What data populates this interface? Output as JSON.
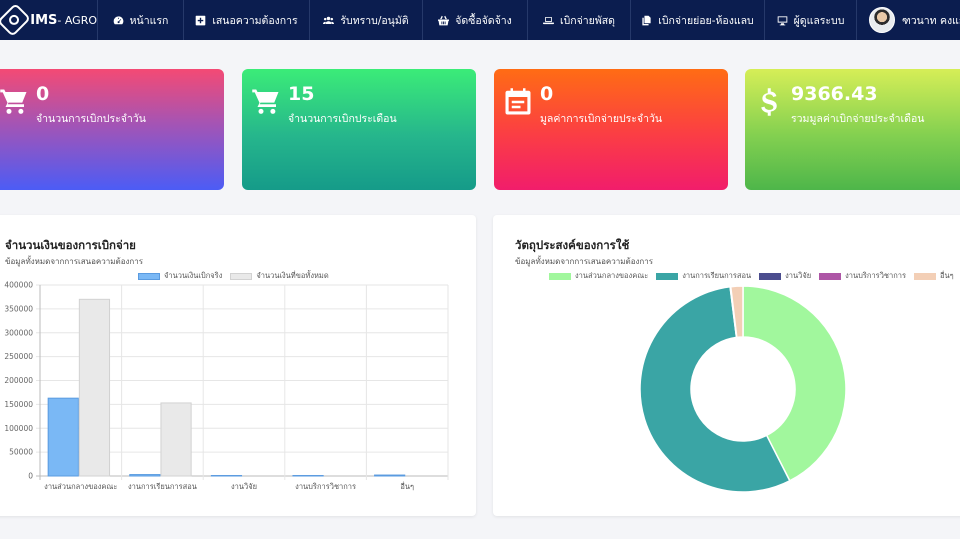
{
  "brand": {
    "name": "IMS",
    "sub": "- AGRO"
  },
  "nav": [
    {
      "key": "home",
      "label": "หน้าแรก",
      "icon": "dashboard-icon"
    },
    {
      "key": "request",
      "label": "เสนอความต้องการ",
      "icon": "plus-square-icon"
    },
    {
      "key": "approve",
      "label": "รับทราบ/อนุมัติ",
      "icon": "users-icon"
    },
    {
      "key": "procure",
      "label": "จัดซื้อจัดจ้าง",
      "icon": "basket-icon"
    },
    {
      "key": "supplies",
      "label": "เบิกจ่ายพัสดุ",
      "icon": "laptop-icon"
    },
    {
      "key": "disburse",
      "label": "เบิกจ่ายย่อย-ห้องแลบ",
      "icon": "copy-icon"
    },
    {
      "key": "users",
      "label": "ผู้ดูแลระบบ",
      "icon": "desktop-icon"
    }
  ],
  "user": {
    "name": "ฑวนาท คงแก้ว"
  },
  "stats": [
    {
      "value": "0",
      "label": "จำนวนการเบิกประจำวัน",
      "icon": "cart-icon"
    },
    {
      "value": "15",
      "label": "จำนวนการเบิกประเดือน",
      "icon": "cart-icon"
    },
    {
      "value": "0",
      "label": "มูลค่าการเบิกจ่ายประจำวัน",
      "icon": "calendar-icon"
    },
    {
      "value": "9366.43",
      "label": "รวมมูลค่าเบิกจ่ายประจำเดือน",
      "icon": "dollar-icon"
    }
  ],
  "bar_panel": {
    "title": "จำนวนเงินของการเบิกจ่าย",
    "subtitle": "ข้อมูลทั้งหมดจากการเสนอความต้องการ"
  },
  "pie_panel": {
    "title": "วัตถุประสงค์ของการใช้",
    "subtitle": "ข้อมูลทั้งหมดจากการเสนอความต้องการ"
  },
  "chart_data": [
    {
      "type": "bar",
      "categories": [
        "งานส่วนกลางของคณะ",
        "งานการเรียนการสอน",
        "งานวิจัย",
        "งานบริการวิชาการ",
        "อื่นๆ"
      ],
      "series": [
        {
          "name": "จำนวนเงินเบิกจริง",
          "color": "#7ab8f5",
          "values": [
            163000,
            3000,
            1000,
            1000,
            2000
          ]
        },
        {
          "name": "จำนวนเงินที่ขอทั้งหมด",
          "color": "#e9e9e9",
          "values": [
            370000,
            153000,
            0,
            0,
            0
          ]
        }
      ],
      "yticks": [
        "0",
        "50000",
        "100000",
        "150000",
        "200000",
        "250000",
        "300000",
        "350000",
        "400000"
      ],
      "ylim": [
        0,
        400000
      ],
      "grid": true,
      "legend": "top"
    },
    {
      "type": "pie",
      "labels": [
        "งานส่วนกลางของคณะ",
        "งานการเรียนการสอน",
        "งานวิจัย",
        "งานบริการวิชาการ",
        "อื่นๆ"
      ],
      "colors": [
        "#a1f79d",
        "#3aa5a5",
        "#4b4d8e",
        "#ae56a6",
        "#f3cfb6"
      ],
      "values": [
        42.5,
        55.5,
        0.05,
        0.05,
        1.9
      ],
      "legend": "top"
    }
  ]
}
